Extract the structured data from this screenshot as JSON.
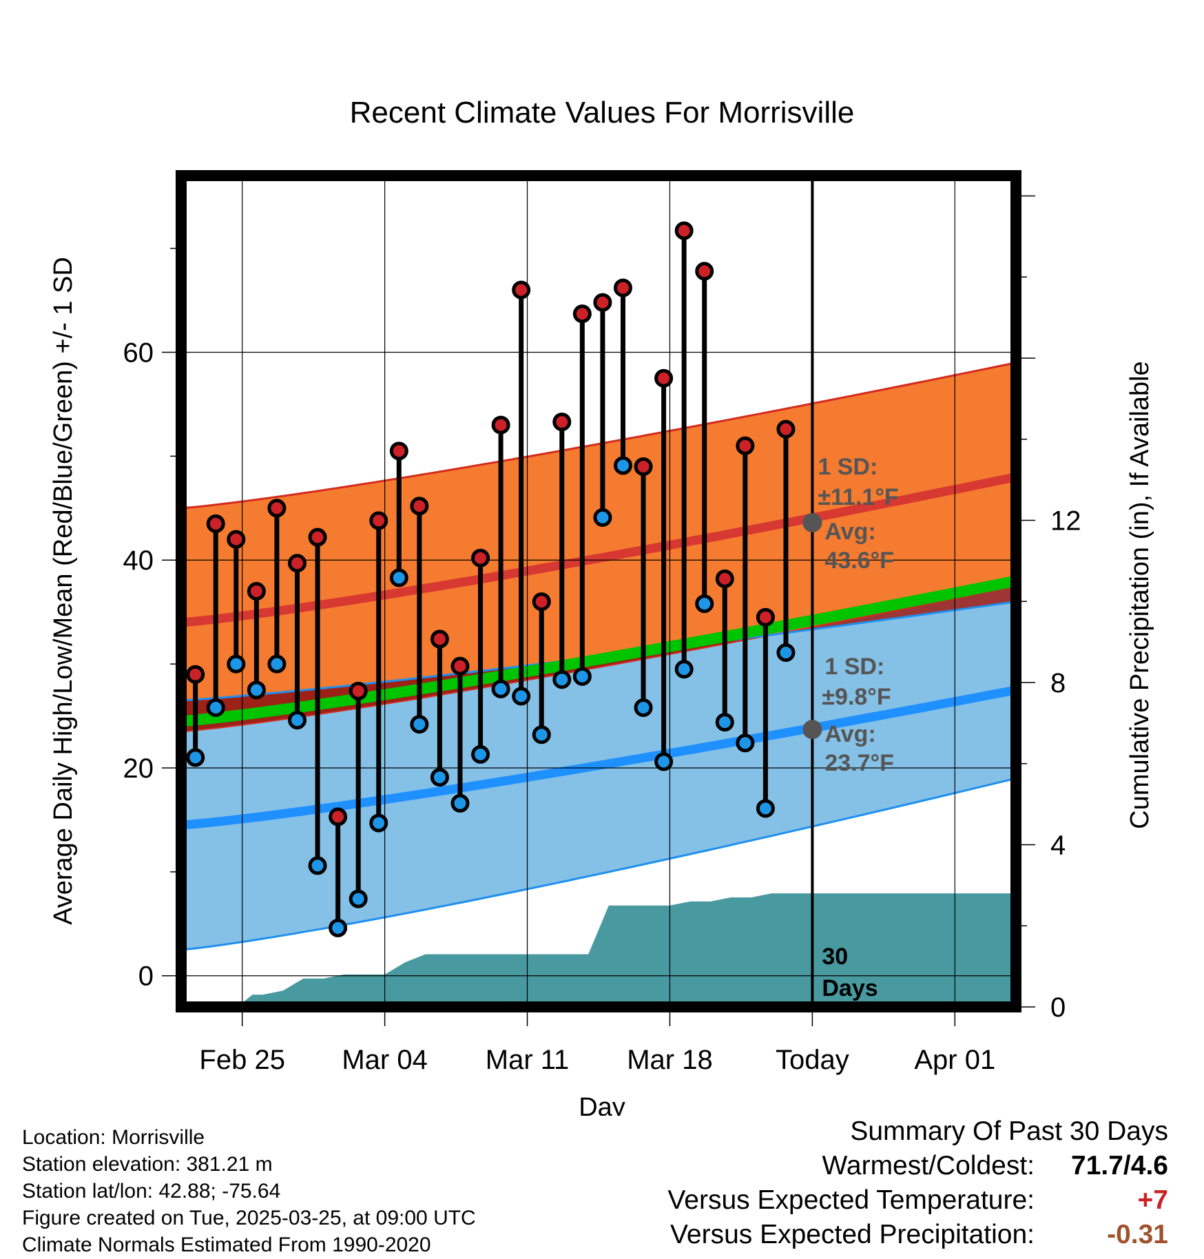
{
  "chart_data": {
    "type": "climate-range",
    "title": "Recent Climate Values For Morrisville",
    "xlabel": "Day",
    "ylabel_left": "Average Daily High/Low/Mean (Red/Blue/Green) +/- 1 SD",
    "ylabel_right": "Cumulative Precipitation (in), If Available",
    "ylim_left": [
      -3,
      77
    ],
    "ylim_right": [
      0,
      20.5
    ],
    "y_ticks_left": [
      0,
      20,
      40,
      60
    ],
    "y_ticks_right": [
      0,
      4,
      8,
      12
    ],
    "x_range_days": [
      0,
      41
    ],
    "x_ticks": [
      {
        "day": 3,
        "label": "Feb 25"
      },
      {
        "day": 10,
        "label": "Mar 04"
      },
      {
        "day": 17,
        "label": "Mar 11"
      },
      {
        "day": 24,
        "label": "Mar 18"
      },
      {
        "day": 31,
        "label": "Today"
      },
      {
        "day": 38,
        "label": "Apr 01"
      }
    ],
    "today_day": 31,
    "daily_start_day": 0.7,
    "highs": [
      29,
      43.5,
      42,
      37,
      45,
      39.7,
      42.2,
      15.3,
      27.4,
      43.8,
      50.5,
      45.2,
      32.4,
      29.8,
      40.2,
      53,
      66,
      36,
      53.3,
      63.7,
      64.8,
      66.2,
      49,
      57.5,
      71.7,
      67.8,
      38.2,
      51,
      34.5,
      52.6
    ],
    "lows": [
      21,
      25.8,
      30,
      27.5,
      30,
      24.6,
      10.6,
      4.6,
      7.4,
      14.7,
      38.3,
      24.2,
      19.1,
      16.6,
      21.3,
      27.6,
      26.9,
      23.2,
      28.5,
      28.8,
      44.1,
      49.1,
      25.8,
      20.6,
      29.5,
      35.8,
      24.4,
      22.4,
      16.1,
      31.1
    ],
    "normal_high": {
      "start": 34,
      "end": 48
    },
    "normal_high_sd_band": {
      "upper_start": 45,
      "upper_end": 59,
      "lower_start": 23.5,
      "lower_end": 37.5
    },
    "normal_low": {
      "start": 14.5,
      "end": 27.5
    },
    "normal_low_sd_band": {
      "upper_start": 26.5,
      "upper_end": 36,
      "lower_start": 2.5,
      "lower_end": 19
    },
    "normal_mean": {
      "start": 24.5,
      "end": 38
    },
    "today_annotations": {
      "high": {
        "value": 43.6,
        "sd_label": "1 SD:",
        "sd_value": "±11.1°F",
        "avg_label": "Avg:",
        "avg_value": "43.6°F"
      },
      "low": {
        "value": 23.7,
        "sd_label": "1 SD:",
        "sd_value": "±9.8°F",
        "avg_label": "Avg:",
        "avg_value": "23.7°F"
      }
    },
    "precip_days": [
      0,
      2.3,
      3,
      3.5,
      4,
      5,
      6,
      7,
      8,
      9,
      10,
      11,
      12,
      13,
      14,
      15,
      16,
      17,
      18,
      19,
      20,
      21,
      22,
      23,
      24,
      25,
      26,
      27,
      28,
      29,
      30,
      31,
      41
    ],
    "precip_cumulative": [
      0,
      0,
      0.1,
      0.3,
      0.3,
      0.4,
      0.7,
      0.7,
      0.8,
      0.8,
      0.8,
      1.1,
      1.3,
      1.3,
      1.3,
      1.3,
      1.3,
      1.3,
      1.3,
      1.3,
      1.3,
      2.5,
      2.5,
      2.5,
      2.5,
      2.6,
      2.6,
      2.7,
      2.7,
      2.8,
      2.8,
      2.8,
      2.8
    ],
    "precip_period_label": [
      "30",
      "Days"
    ],
    "colors": {
      "high_band": "#f47b2f",
      "high_edge": "#d42a1e",
      "high_line": "#d83832",
      "low_band": "#85c0e6",
      "low_edge": "#1f8ff0",
      "low_line": "#1e90ff",
      "mean_line": "#00c400",
      "overlap": "#8c1212",
      "precip": "#4999a1",
      "high_dot": "#cc2127",
      "low_dot": "#1e96e8",
      "annotation": "#555555"
    }
  },
  "footer": {
    "location": "Location: Morrisville",
    "elevation": "Station elevation: 381.21 m",
    "latlon": "Station lat/lon: 42.88; -75.64",
    "created": "Figure created on Tue, 2025-03-25, at 09:00 UTC",
    "normals": "Climate Normals Estimated From 1990-2020"
  },
  "summary": {
    "title": "Summary Of Past 30 Days",
    "warmest_label": "Warmest/Coldest:",
    "warmest_value": "71.7/4.6",
    "temp_label": "Versus Expected Temperature:",
    "temp_value": "+7",
    "temp_color": "#cc2127",
    "precip_label": "Versus Expected Precipitation:",
    "precip_value": "-0.31",
    "precip_color": "#a0522d"
  }
}
